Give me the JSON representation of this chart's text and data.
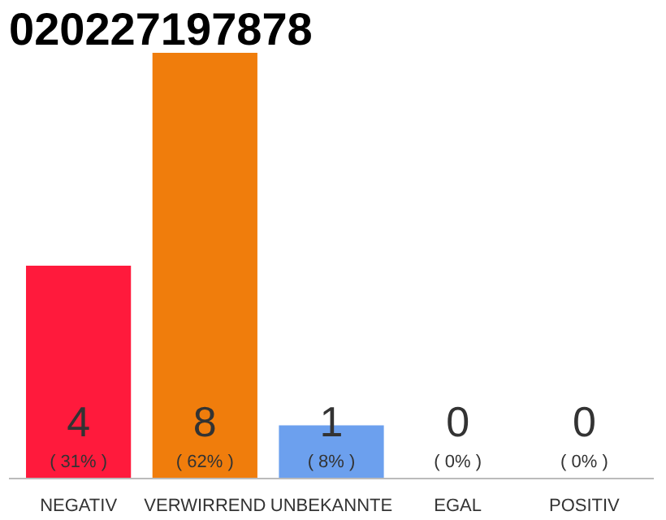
{
  "chart_data": {
    "type": "bar",
    "title": "020227197878",
    "categories": [
      "NEGATIV",
      "VERWIRREND",
      "UNBEKANNTE",
      "EGAL",
      "POSITIV"
    ],
    "series": [
      {
        "colors": [
          "#ff1a3c",
          "#f07d0c",
          "#6ca0ee",
          "#efefef",
          "#efefef"
        ],
        "values": [
          4,
          8,
          1,
          0,
          0
        ],
        "value_labels": [
          "4\n( 31% )",
          "8\n( 62% )",
          "1\n( 8% )",
          "0\n( 0% )",
          "0\n( 0% )"
        ]
      }
    ],
    "tick_labels": "x"
  }
}
